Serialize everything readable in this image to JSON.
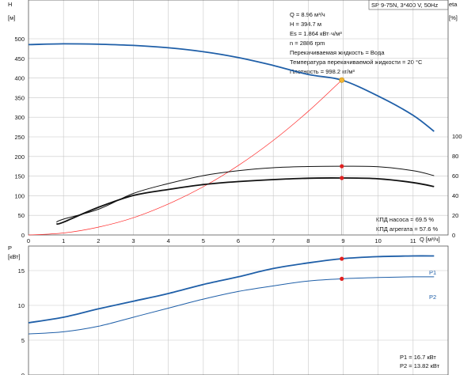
{
  "header": {
    "model": "SP 9-75N, 3*400 V, 50Hz",
    "y_axis_h_symbol": "H",
    "y_axis_h_unit": "[м]",
    "y_axis_eta_symbol": "eta",
    "y_axis_eta_unit": "[%]",
    "x_axis_label": "Q [м³/ч]",
    "y_axis_p_symbol": "P",
    "y_axis_p_unit": "[кВт]"
  },
  "info": [
    "Q = 8.96 м³/ч",
    "H = 394.7 м",
    "Es = 1.864 кВт·ч/м³",
    "n = 2886 rpm",
    "Перекачиваемая жидкость = Вода",
    "Температура перекачиваемой жидкости = 20 °C",
    "Плотность = 998.2 кг/м³"
  ],
  "efficiency_labels": [
    "КПД насоса = 69.5 %",
    "КПД агрегата = 57.6 %"
  ],
  "power_labels": [
    "P1 = 16.7 кВт",
    "P2 = 13.82 кВт"
  ],
  "series_labels": {
    "p1": "P1",
    "p2": "P2"
  },
  "colors": {
    "head_curve": "#1f5fa8",
    "efficiency_curves": "#111111",
    "system_curve": "#ff2a2a",
    "duty_point": "#f2b632",
    "marker": "#e02020",
    "grid": "#c8c8c8"
  },
  "chart_data": [
    {
      "type": "line",
      "title": "",
      "xlabel": "Q [м³/ч]",
      "ylabel": "H [м]",
      "xlim": [
        0,
        12
      ],
      "ylim": [
        0,
        500
      ],
      "secondary_ylabel": "eta [%]",
      "secondary_ylim": [
        0,
        100
      ],
      "x_ticks": [
        0,
        1,
        2,
        3,
        4,
        5,
        6,
        7,
        8,
        9,
        10,
        11
      ],
      "y_ticks": [
        0,
        50,
        100,
        150,
        200,
        250,
        300,
        350,
        400,
        450,
        500
      ],
      "secondary_y_ticks": [
        0,
        20,
        40,
        60,
        80,
        100
      ],
      "grid": true,
      "series": [
        {
          "name": "H",
          "axis": "H",
          "x": [
            0,
            1,
            2,
            3,
            4,
            5,
            6,
            7,
            8,
            8.96,
            10,
            11,
            11.6
          ],
          "y": [
            485,
            487,
            486,
            483,
            477,
            467,
            452,
            432,
            409,
            394.7,
            354,
            305,
            264
          ]
        },
        {
          "name": "",
          "axis": "H",
          "x": [
            0,
            1,
            2,
            3,
            4,
            5,
            6,
            7,
            8,
            8.96
          ],
          "y": [
            0,
            5,
            20,
            44,
            79,
            123,
            177,
            241,
            315,
            394.7
          ]
        },
        {
          "name": "КПД насоса",
          "axis": "eta",
          "x": [
            0.8,
            1,
            2,
            3,
            4,
            5,
            6,
            7,
            8,
            8.96,
            10,
            11,
            11.6
          ],
          "y": [
            13,
            16,
            26,
            42,
            52,
            60,
            65,
            68,
            69.2,
            69.5,
            69,
            65,
            60
          ]
        },
        {
          "name": "КПД агрегата",
          "axis": "eta",
          "x": [
            0.8,
            1,
            2,
            3,
            4,
            5,
            6,
            7,
            8,
            8.96,
            10,
            11,
            11.6
          ],
          "y": [
            11,
            13,
            28,
            40,
            46,
            51,
            54,
            56,
            57.4,
            57.6,
            56.8,
            53,
            49
          ]
        }
      ],
      "points": [
        {
          "x": 8.96,
          "y": 394.7,
          "axis": "H",
          "kind": "duty_point"
        },
        {
          "x": 8.96,
          "y": 69.5,
          "axis": "eta",
          "kind": "marker"
        },
        {
          "x": 8.96,
          "y": 57.6,
          "axis": "eta",
          "kind": "marker"
        }
      ]
    },
    {
      "type": "line",
      "title": "",
      "xlabel": "",
      "ylabel": "P [кВт]",
      "xlim": [
        0,
        12
      ],
      "ylim": [
        0,
        20
      ],
      "y_ticks": [
        0,
        5,
        10,
        15
      ],
      "grid": true,
      "series": [
        {
          "name": "P1",
          "x": [
            0,
            1,
            2,
            3,
            4,
            5,
            6,
            7,
            8,
            8.96,
            10,
            11,
            11.6
          ],
          "y": [
            7.5,
            8.3,
            9.5,
            10.6,
            11.7,
            13.0,
            14.1,
            15.3,
            16.1,
            16.7,
            17.0,
            17.1,
            17.1
          ]
        },
        {
          "name": "P2",
          "x": [
            0,
            1,
            2,
            3,
            4,
            5,
            6,
            7,
            8,
            8.96,
            10,
            11,
            11.6
          ],
          "y": [
            5.9,
            6.2,
            7.0,
            8.3,
            9.6,
            10.9,
            12.0,
            12.8,
            13.5,
            13.82,
            14.0,
            14.1,
            14.1
          ]
        }
      ],
      "points": [
        {
          "x": 8.96,
          "y": 16.7,
          "kind": "marker"
        },
        {
          "x": 8.96,
          "y": 13.82,
          "kind": "marker"
        }
      ]
    }
  ]
}
